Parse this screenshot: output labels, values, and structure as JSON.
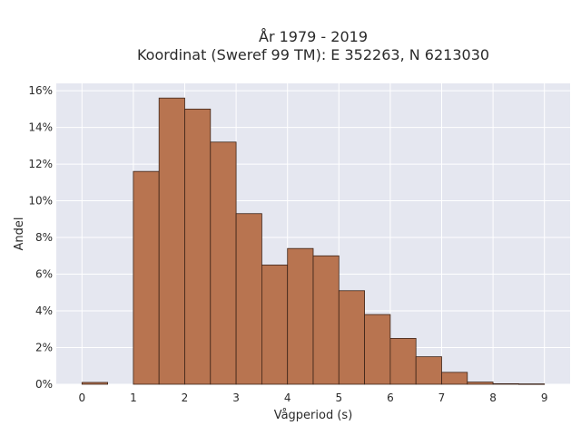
{
  "chart_data": {
    "type": "bar",
    "title_line1": "År 1979 - 2019",
    "title_line2": "Koordinat (Sweref 99 TM): E 352263, N 6213030",
    "xlabel": "Vågperiod (s)",
    "ylabel": "Andel",
    "xlim": [
      -0.5,
      9.5
    ],
    "ylim": [
      0,
      16.4
    ],
    "x_ticks": [
      0,
      1,
      2,
      3,
      4,
      5,
      6,
      7,
      8,
      9
    ],
    "y_ticks": [
      0,
      2,
      4,
      6,
      8,
      10,
      12,
      14,
      16
    ],
    "y_tick_suffix": "%",
    "grid": true,
    "bin_width": 0.5,
    "bins": [
      {
        "start": 0.0,
        "value": 0.1
      },
      {
        "start": 1.0,
        "value": 11.6
      },
      {
        "start": 1.5,
        "value": 15.6
      },
      {
        "start": 2.0,
        "value": 15.0
      },
      {
        "start": 2.5,
        "value": 13.2
      },
      {
        "start": 3.0,
        "value": 9.3
      },
      {
        "start": 3.5,
        "value": 6.5
      },
      {
        "start": 4.0,
        "value": 7.4
      },
      {
        "start": 4.5,
        "value": 7.0
      },
      {
        "start": 5.0,
        "value": 5.1
      },
      {
        "start": 5.5,
        "value": 3.8
      },
      {
        "start": 6.0,
        "value": 2.5
      },
      {
        "start": 6.5,
        "value": 1.5
      },
      {
        "start": 7.0,
        "value": 0.65
      },
      {
        "start": 7.5,
        "value": 0.12
      },
      {
        "start": 8.0,
        "value": 0.03
      },
      {
        "start": 8.5,
        "value": 0.02
      }
    ],
    "colors": {
      "bar_fill": "#b87450",
      "bar_stroke": "#3d2418",
      "plot_bg": "#e5e7f0",
      "grid": "#ffffff"
    }
  }
}
